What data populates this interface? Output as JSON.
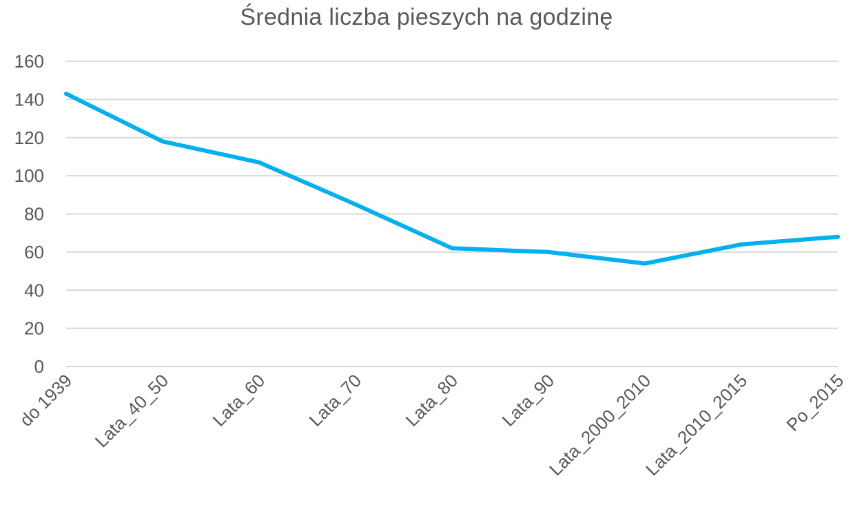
{
  "chart_data": {
    "type": "line",
    "title": "Średnia liczba pieszych na godzinę",
    "xlabel": "",
    "ylabel": "",
    "categories": [
      "do 1939",
      "Lata_40_50",
      "Lata_60",
      "Lata_70",
      "Lata_80",
      "Lata_90",
      "Lata_2000_2010",
      "Lata_2010_2015",
      "Po_2015"
    ],
    "series": [
      {
        "values": [
          143,
          118,
          107,
          85,
          62,
          60,
          54,
          64,
          68
        ],
        "color": "#00b0f0"
      }
    ],
    "ylim": [
      0,
      160
    ],
    "yticks": [
      0,
      20,
      40,
      60,
      80,
      100,
      120,
      140,
      160
    ],
    "grid": true,
    "legend": "none"
  }
}
